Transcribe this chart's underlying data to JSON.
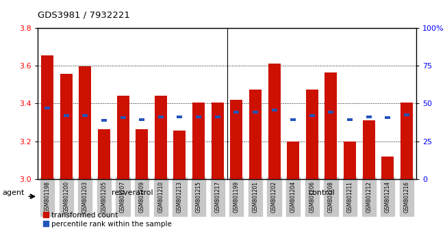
{
  "title": "GDS3981 / 7932221",
  "samples": [
    "GSM801198",
    "GSM801200",
    "GSM801203",
    "GSM801205",
    "GSM801207",
    "GSM801209",
    "GSM801210",
    "GSM801213",
    "GSM801215",
    "GSM801217",
    "GSM801199",
    "GSM801201",
    "GSM801202",
    "GSM801204",
    "GSM801206",
    "GSM801208",
    "GSM801211",
    "GSM801212",
    "GSM801214",
    "GSM801216"
  ],
  "red_values": [
    3.655,
    3.555,
    3.595,
    3.265,
    3.44,
    3.265,
    3.44,
    3.255,
    3.405,
    3.405,
    3.42,
    3.475,
    3.61,
    3.2,
    3.475,
    3.565,
    3.2,
    3.31,
    3.12,
    3.405
  ],
  "blue_values": [
    3.375,
    3.335,
    3.335,
    3.31,
    3.325,
    3.315,
    3.33,
    3.33,
    3.33,
    3.33,
    3.355,
    3.355,
    3.365,
    3.315,
    3.335,
    3.355,
    3.315,
    3.33,
    3.325,
    3.34
  ],
  "resveratrol_count": 10,
  "control_count": 10,
  "y_min": 3.0,
  "y_max": 3.8,
  "y_ticks": [
    3.0,
    3.2,
    3.4,
    3.6,
    3.8
  ],
  "right_y_ticks": [
    0,
    25,
    50,
    75,
    100
  ],
  "right_y_labels": [
    "0",
    "25",
    "50",
    "75",
    "100%"
  ],
  "bar_color": "#cc1100",
  "blue_color": "#2255bb",
  "resveratrol_color": "#aaeea0",
  "control_color": "#55dd44",
  "bar_width": 0.65,
  "agent_label": "agent",
  "resveratrol_label": "resveratrol",
  "control_label": "control",
  "legend_red": "transformed count",
  "legend_blue": "percentile rank within the sample",
  "bg_color": "#ffffff",
  "xtick_bg": "#c8c8c8"
}
